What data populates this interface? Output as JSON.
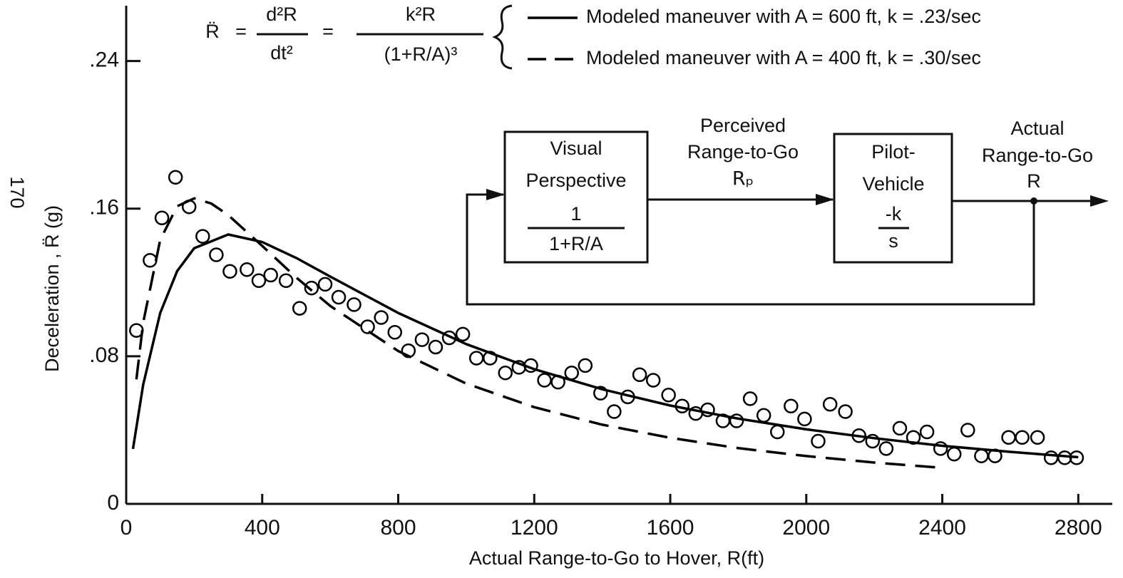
{
  "page_number": "170",
  "equation": {
    "lhs": "R̈",
    "eq": "=",
    "num1": "d²R",
    "den1": "dt²",
    "num2": "k²R",
    "den2": "(1+R/A)³"
  },
  "diagram": {
    "blocks": [
      {
        "label": [
          "Visual",
          "Perspective"
        ],
        "num": "1",
        "den": "1+R/A"
      },
      {
        "label": [
          "Pilot-",
          "Vehicle"
        ],
        "num": "-k",
        "den": "s"
      }
    ],
    "signals": [
      {
        "label": [
          "Perceived",
          "Range-to-Go",
          "Rₚ"
        ]
      },
      {
        "label": [
          "Actual",
          "Range-to-Go",
          "R"
        ]
      }
    ]
  },
  "chart_data": {
    "type": "scatter",
    "x_label": "Actual Range-to-Go to Hover, R(ft)",
    "y_label": "Deceleration , R̈ (g)",
    "xlim": [
      0,
      2900
    ],
    "ylim": [
      0,
      0.27
    ],
    "xticks": [
      0,
      400,
      800,
      1200,
      1600,
      2000,
      2400,
      2800
    ],
    "yticks": [
      0,
      {
        "value": 0.08,
        "label": ".08"
      },
      {
        "value": 0.16,
        "label": ".16"
      },
      {
        "value": 0.24,
        "label": ".24"
      }
    ],
    "legend": "top-right",
    "series": [
      {
        "name": "Modeled maneuver with A = 600 ft, k = .23/sec",
        "color": "#000",
        "line": "solid",
        "x": [
          20,
          50,
          100,
          150,
          200,
          300,
          400,
          500,
          600,
          800,
          1000,
          1200,
          1400,
          1600,
          1800,
          2000,
          2200,
          2400,
          2600,
          2800
        ],
        "values": [
          0.0298,
          0.0646,
          0.1035,
          0.1262,
          0.1386,
          0.146,
          0.1419,
          0.1333,
          0.1232,
          0.1035,
          0.0866,
          0.073,
          0.0621,
          0.0533,
          0.0462,
          0.0404,
          0.0356,
          0.0315,
          0.0282,
          0.0253
        ]
      },
      {
        "name": "Modeled maneuver with A = 400 ft, k = .30/sec",
        "color": "#000",
        "line": "dashed",
        "x": [
          30,
          50,
          100,
          150,
          200,
          250,
          300,
          400,
          500,
          600,
          800,
          1000,
          1200,
          1400,
          1600,
          1800,
          2000,
          2200,
          2380
        ],
        "values": [
          0.0675,
          0.0982,
          0.1431,
          0.1613,
          0.1656,
          0.1628,
          0.1565,
          0.1398,
          0.1227,
          0.1073,
          0.0828,
          0.0652,
          0.0524,
          0.0429,
          0.0358,
          0.0302,
          0.0259,
          0.0224,
          0.0198
        ]
      },
      {
        "color": "#000",
        "marker": "circle",
        "x": [
          30,
          70,
          105,
          145,
          185,
          225,
          265,
          305,
          355,
          390,
          425,
          470,
          510,
          545,
          585,
          625,
          670,
          710,
          750,
          790,
          830,
          870,
          910,
          950,
          990,
          1030,
          1070,
          1115,
          1155,
          1190,
          1230,
          1270,
          1310,
          1350,
          1395,
          1435,
          1475,
          1510,
          1550,
          1595,
          1635,
          1675,
          1710,
          1755,
          1795,
          1835,
          1875,
          1915,
          1955,
          1995,
          2035,
          2070,
          2115,
          2155,
          2195,
          2235,
          2275,
          2315,
          2355,
          2395,
          2435,
          2475,
          2515,
          2555,
          2595,
          2635,
          2680,
          2720,
          2760,
          2795
        ],
        "values": [
          0.094,
          0.132,
          0.155,
          0.177,
          0.161,
          0.145,
          0.135,
          0.126,
          0.127,
          0.121,
          0.124,
          0.121,
          0.106,
          0.117,
          0.119,
          0.112,
          0.108,
          0.096,
          0.101,
          0.093,
          0.083,
          0.089,
          0.085,
          0.09,
          0.092,
          0.079,
          0.079,
          0.071,
          0.074,
          0.075,
          0.067,
          0.066,
          0.071,
          0.075,
          0.06,
          0.05,
          0.058,
          0.07,
          0.067,
          0.059,
          0.053,
          0.049,
          0.051,
          0.045,
          0.045,
          0.057,
          0.048,
          0.039,
          0.053,
          0.046,
          0.034,
          0.054,
          0.05,
          0.037,
          0.034,
          0.03,
          0.041,
          0.036,
          0.039,
          0.03,
          0.027,
          0.04,
          0.026,
          0.026,
          0.036,
          0.036,
          0.036,
          0.025,
          0.025,
          0.025
        ]
      }
    ]
  }
}
